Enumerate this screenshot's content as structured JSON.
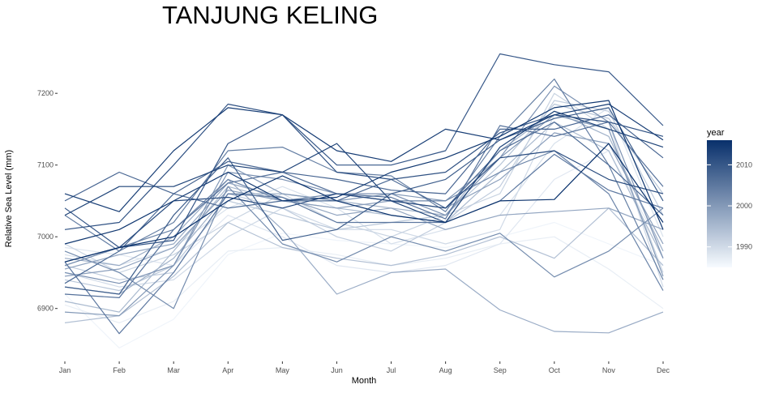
{
  "chart_data": {
    "type": "line",
    "title": "TANJUNG KELING",
    "xlabel": "Month",
    "ylabel": "Relative Sea Level (mm)",
    "categories": [
      "Jan",
      "Feb",
      "Mar",
      "Apr",
      "May",
      "Jun",
      "Jul",
      "Aug",
      "Sep",
      "Oct",
      "Nov",
      "Dec"
    ],
    "yticks": [
      6900,
      7000,
      7100,
      7200
    ],
    "ylim": [
      6833,
      7268
    ],
    "grid": false,
    "legend": {
      "title": "year",
      "position": "right",
      "type": "colorbar",
      "range": [
        1985,
        2016
      ],
      "ticks": [
        1990,
        2000,
        2010
      ],
      "color_low": "#f7fbff",
      "color_high": "#08306b"
    },
    "series": [
      {
        "year": 1986,
        "values": [
          6920,
          6845,
          6885,
          6975,
          7005,
          6995,
          6990,
          6985,
          7000,
          7020,
          6990,
          6960
        ]
      },
      {
        "year": 1987,
        "values": [
          6905,
          6880,
          6910,
          6980,
          6985,
          6975,
          6960,
          6970,
          6990,
          7000,
          6955,
          6900
        ]
      },
      {
        "year": 1988,
        "values": [
          6985,
          6975,
          6960,
          7030,
          7000,
          6960,
          6950,
          6960,
          6990,
          7080,
          7120,
          6980
        ]
      },
      {
        "year": 1989,
        "values": [
          6975,
          6960,
          6985,
          7040,
          7070,
          7040,
          6990,
          7010,
          7030,
          7130,
          7180,
          7000
        ]
      },
      {
        "year": 1990,
        "values": [
          6950,
          6930,
          6940,
          7000,
          7040,
          7010,
          7010,
          6990,
          7010,
          7170,
          7160,
          6930
        ]
      },
      {
        "year": 1991,
        "values": [
          6990,
          6950,
          6975,
          7020,
          7060,
          7020,
          7000,
          7030,
          7060,
          7200,
          7150,
          6950
        ]
      },
      {
        "year": 1992,
        "values": [
          6960,
          6940,
          6950,
          7060,
          7040,
          7000,
          6980,
          7020,
          7070,
          7190,
          7175,
          7030
        ]
      },
      {
        "year": 1993,
        "values": [
          6940,
          6925,
          6960,
          7050,
          7030,
          7010,
          7020,
          7030,
          7100,
          7185,
          7165,
          7060
        ]
      },
      {
        "year": 1994,
        "values": [
          6880,
          6890,
          6945,
          7020,
          6985,
          6970,
          6960,
          6975,
          7000,
          6970,
          7040,
          6960
        ]
      },
      {
        "year": 1995,
        "values": [
          6910,
          6895,
          6980,
          7070,
          7050,
          7040,
          7030,
          7020,
          7090,
          7160,
          7120,
          6970
        ]
      },
      {
        "year": 1996,
        "values": [
          6930,
          6920,
          6970,
          7060,
          7060,
          7050,
          7040,
          7030,
          7120,
          7175,
          7140,
          6980
        ]
      },
      {
        "year": 1997,
        "values": [
          6970,
          6960,
          7000,
          7080,
          7010,
          6920,
          6950,
          6955,
          6898,
          6868,
          6866,
          6895
        ]
      },
      {
        "year": 1998,
        "values": [
          6955,
          6975,
          6990,
          7075,
          7055,
          7030,
          7040,
          7010,
          7030,
          7035,
          7040,
          7010
        ]
      },
      {
        "year": 1999,
        "values": [
          6945,
          6955,
          6985,
          7065,
          7050,
          7040,
          7050,
          7040,
          7080,
          7145,
          7130,
          6990
        ]
      },
      {
        "year": 2000,
        "values": [
          6895,
          6890,
          6960,
          7100,
          7060,
          7050,
          7060,
          7050,
          7110,
          7170,
          7150,
          6945
        ]
      },
      {
        "year": 2001,
        "values": [
          6950,
          6935,
          6960,
          7090,
          7080,
          7060,
          7060,
          7030,
          7110,
          7210,
          7160,
          6970
        ]
      },
      {
        "year": 2002,
        "values": [
          6980,
          6950,
          6900,
          7070,
          6990,
          6965,
          7000,
          6980,
          7005,
          6944,
          6980,
          7040
        ]
      },
      {
        "year": 2003,
        "values": [
          6960,
          6985,
          7010,
          7080,
          7050,
          7060,
          7050,
          7050,
          7090,
          7120,
          7060,
          6925
        ]
      },
      {
        "year": 2004,
        "values": [
          7030,
          6980,
          7020,
          7120,
          7125,
          7090,
          7085,
          7035,
          7140,
          7220,
          7100,
          6940
        ]
      },
      {
        "year": 2005,
        "values": [
          6965,
          6865,
          6950,
          7060,
          7055,
          7020,
          7020,
          7020,
          7050,
          7115,
          7065,
          7040
        ]
      },
      {
        "year": 2006,
        "values": [
          6920,
          6915,
          7010,
          7075,
          7090,
          7060,
          7055,
          7025,
          7155,
          7140,
          7160,
          7070
        ]
      },
      {
        "year": 2007,
        "values": [
          6935,
          6980,
          7060,
          7040,
          7050,
          7050,
          7080,
          7040,
          7120,
          7160,
          7100,
          7030
        ]
      },
      {
        "year": 2008,
        "values": [
          7050,
          7090,
          7060,
          7105,
          7090,
          7080,
          7065,
          7060,
          7150,
          7150,
          7170,
          7110
        ]
      },
      {
        "year": 2009,
        "values": [
          6930,
          6920,
          7030,
          7110,
          6995,
          7010,
          7060,
          7080,
          7135,
          7165,
          7180,
          7050
        ]
      },
      {
        "year": 2010,
        "values": [
          7040,
          6985,
          6995,
          7130,
          7170,
          7100,
          7100,
          7120,
          7255,
          7240,
          7230,
          7155
        ]
      },
      {
        "year": 2011,
        "values": [
          7010,
          7020,
          7100,
          7185,
          7170,
          7090,
          7080,
          7090,
          7145,
          7170,
          7160,
          7140
        ]
      },
      {
        "year": 2012,
        "values": [
          6965,
          6985,
          7050,
          7055,
          7040,
          7060,
          7050,
          7040,
          7110,
          7120,
          7080,
          7060
        ]
      },
      {
        "year": 2013,
        "values": [
          7030,
          7070,
          7070,
          7100,
          7090,
          7130,
          7050,
          7020,
          7125,
          7175,
          7150,
          7125
        ]
      },
      {
        "year": 2014,
        "values": [
          7060,
          7035,
          7120,
          7180,
          7170,
          7120,
          7105,
          7150,
          7135,
          7170,
          7185,
          7135
        ]
      },
      {
        "year": 2015,
        "values": [
          6990,
          7010,
          7050,
          7090,
          7050,
          7055,
          7090,
          7110,
          7140,
          7180,
          7190,
          7010
        ]
      },
      {
        "year": 2016,
        "values": [
          6965,
          6985,
          7000,
          7050,
          7085,
          7050,
          7030,
          7020,
          7050,
          7052,
          7130,
          7020
        ]
      }
    ]
  }
}
